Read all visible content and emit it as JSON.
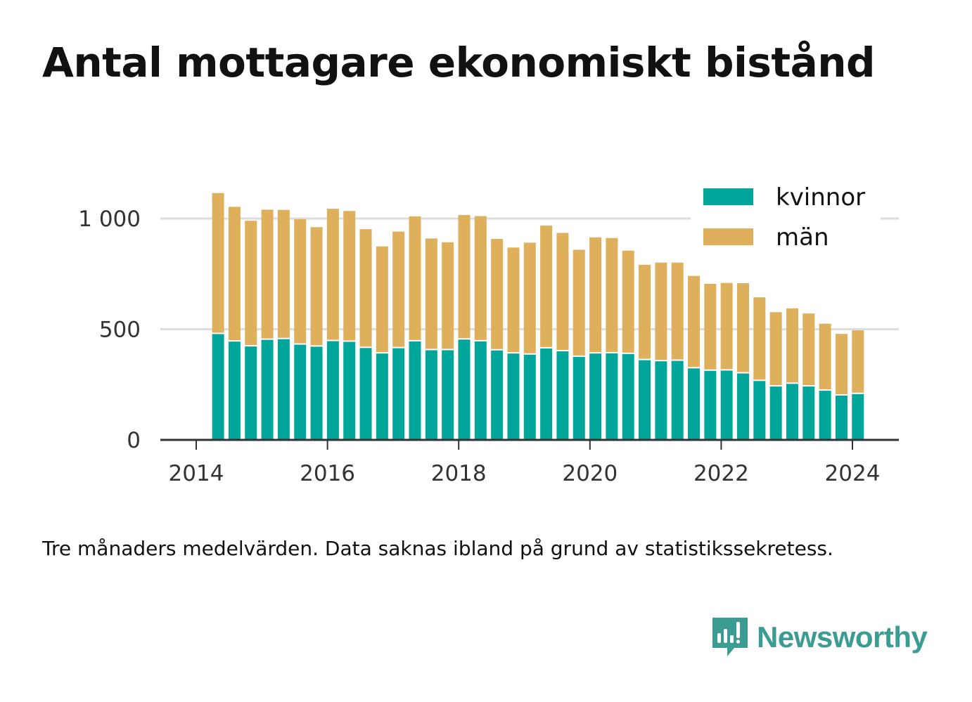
{
  "title": "Antal mottagare ekonomiskt bistånd",
  "note": "Tre månaders medelvärden. Data saknas ibland på grund av statistikssekretess.",
  "brand": {
    "name": "Newsworthy",
    "icon": "newsworthy-logo-icon"
  },
  "colors": {
    "kvinnor": "#00a699",
    "man": "#deb05c",
    "axis": "#333333",
    "grid": "#dddddd"
  },
  "chart_data": {
    "type": "bar",
    "stacked": true,
    "x": [
      "2014-05",
      "2014-08",
      "2014-11",
      "2015-02",
      "2015-05",
      "2015-08",
      "2015-11",
      "2016-02",
      "2016-05",
      "2016-08",
      "2016-11",
      "2017-02",
      "2017-05",
      "2017-08",
      "2017-11",
      "2018-02",
      "2018-05",
      "2018-08",
      "2018-11",
      "2019-02",
      "2019-05",
      "2019-08",
      "2019-11",
      "2020-02",
      "2020-05",
      "2020-08",
      "2020-11",
      "2021-02",
      "2021-05",
      "2021-08",
      "2021-11",
      "2022-02",
      "2022-05",
      "2022-08",
      "2022-11",
      "2023-02",
      "2023-05",
      "2023-08",
      "2023-11",
      "2024-02"
    ],
    "series": [
      {
        "name": "kvinnor",
        "values": [
          478,
          444,
          422,
          452,
          455,
          430,
          421,
          446,
          443,
          415,
          390,
          414,
          445,
          405,
          405,
          453,
          445,
          404,
          390,
          385,
          413,
          400,
          375,
          390,
          391,
          388,
          360,
          355,
          357,
          323,
          312,
          313,
          300,
          266,
          241,
          253,
          241,
          222,
          200,
          207
        ]
      },
      {
        "name": "män",
        "values": [
          637,
          609,
          568,
          588,
          584,
          567,
          540,
          598,
          591,
          537,
          484,
          527,
          565,
          505,
          488,
          563,
          566,
          504,
          479,
          506,
          555,
          535,
          484,
          525,
          521,
          467,
          431,
          446,
          444,
          418,
          393,
          396,
          408,
          378,
          336,
          341,
          330,
          303,
          279,
          288
        ]
      }
    ],
    "ylim": [
      0,
      1150
    ],
    "yticks": [
      {
        "value": 0,
        "label": "0"
      },
      {
        "value": 500,
        "label": "500"
      },
      {
        "value": 1000,
        "label": "1 000"
      }
    ],
    "xticks": [
      {
        "value": "2014-01",
        "label": "2014"
      },
      {
        "value": "2016-01",
        "label": "2016"
      },
      {
        "value": "2018-01",
        "label": "2018"
      },
      {
        "value": "2020-01",
        "label": "2020"
      },
      {
        "value": "2022-01",
        "label": "2022"
      },
      {
        "value": "2024-01",
        "label": "2024"
      }
    ],
    "legend_position": "top-right",
    "grid": true
  }
}
